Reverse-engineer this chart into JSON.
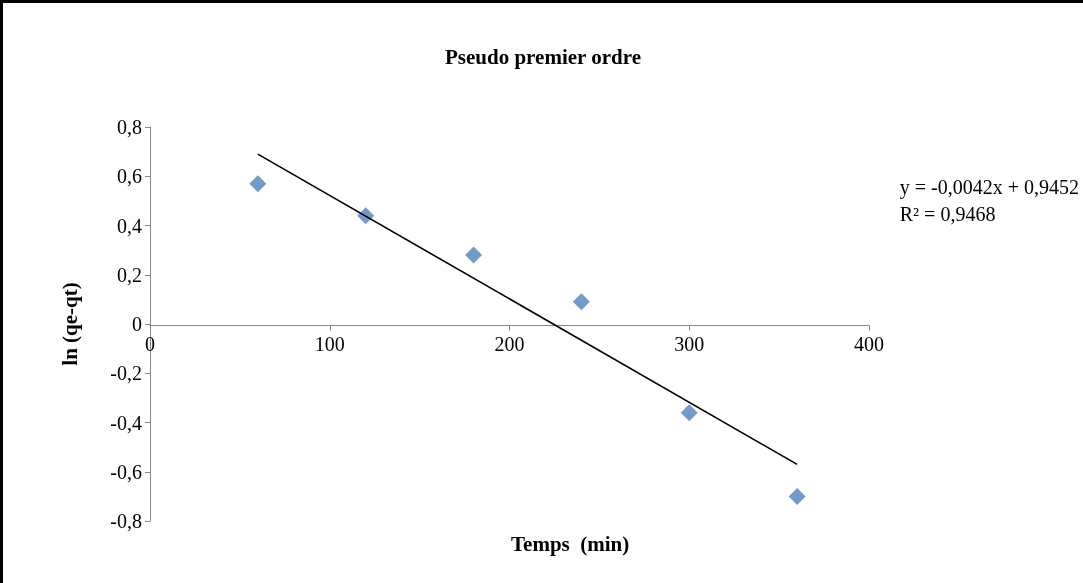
{
  "chart_data": {
    "type": "scatter",
    "title": "Pseudo premier ordre",
    "xlabel": "Temps  (min)",
    "ylabel": "ln (qe-qt)",
    "marker": "diamond",
    "xlim": [
      0,
      400
    ],
    "xticks": [
      0,
      100,
      200,
      300,
      400
    ],
    "ylim": [
      -0.8,
      0.8
    ],
    "yticks": [
      {
        "value": -0.8,
        "label": "-0,8"
      },
      {
        "value": -0.6,
        "label": "-0,6"
      },
      {
        "value": -0.4,
        "label": "-0,4"
      },
      {
        "value": -0.2,
        "label": "-0,2"
      },
      {
        "value": 0,
        "label": "0"
      },
      {
        "value": 0.2,
        "label": "0,2"
      },
      {
        "value": 0.4,
        "label": "0,4"
      },
      {
        "value": 0.6,
        "label": "0,6"
      },
      {
        "value": 0.8,
        "label": "0,8"
      }
    ],
    "series": [
      {
        "color": "#4f81bd",
        "x": [
          60,
          120,
          180,
          240,
          300,
          360
        ],
        "values": [
          0.57,
          0.44,
          0.28,
          0.09,
          -0.36,
          -0.7
        ]
      },
      {
        "type": "line",
        "color": "#000000",
        "marker": "none",
        "line_style": "solid",
        "x": [
          60,
          360
        ],
        "values": [
          0.69,
          -0.57
        ]
      }
    ],
    "annotations": [
      "y = -0,0042x + 0,9452\nR² = 0,9468"
    ]
  }
}
